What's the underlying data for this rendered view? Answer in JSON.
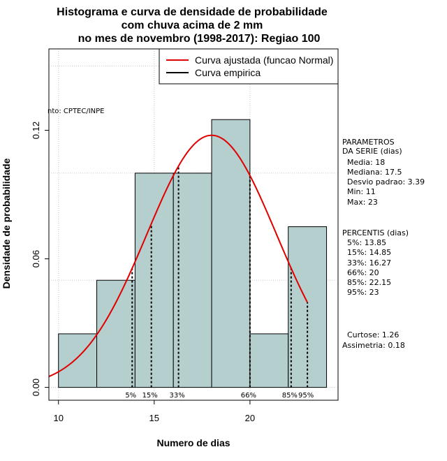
{
  "chart_data": {
    "type": "bar",
    "title_lines": [
      "Histograma e curva de densidade de probabilidade",
      "com chuva acima de 2 mm",
      "no mes de novembro (1998-2017): Regiao 100"
    ],
    "xlabel": "Numero de dias",
    "ylabel": "Densidade de probabilidade",
    "xlim": [
      9.5,
      24.6
    ],
    "ylim": [
      -0.006,
      0.158
    ],
    "x_ticks": [
      10,
      15,
      20
    ],
    "y_ticks": [
      0.0,
      0.06,
      0.12
    ],
    "y_tick_labels": [
      "0.00",
      "0.06",
      "0.12"
    ],
    "grid": true,
    "bar_color": "#b5cece",
    "bins": [
      {
        "from": 10,
        "to": 12,
        "density": 0.025
      },
      {
        "from": 12,
        "to": 14,
        "density": 0.05
      },
      {
        "from": 14,
        "to": 16,
        "density": 0.1
      },
      {
        "from": 16,
        "to": 18,
        "density": 0.1
      },
      {
        "from": 18,
        "to": 20,
        "density": 0.125
      },
      {
        "from": 20,
        "to": 22,
        "density": 0.025
      },
      {
        "from": 22,
        "to": 24,
        "density": 0.075
      }
    ],
    "normal_fit": {
      "mean": 18,
      "sd": 3.39,
      "x_from": 9.5,
      "x_to": 23.0,
      "color": "#e00000"
    },
    "percentile_lines": [
      {
        "label": "5%",
        "x": 13.85
      },
      {
        "label": "15%",
        "x": 14.85
      },
      {
        "label": "33%",
        "x": 16.27
      },
      {
        "label": "66%",
        "x": 20
      },
      {
        "label": "85%",
        "x": 22.15
      },
      {
        "label": "95%",
        "x": 23
      }
    ],
    "legend": [
      {
        "label": "Curva ajustada (funcao Normal)",
        "color": "#e00000"
      },
      {
        "label": "Curva empirica",
        "color": "#000000"
      }
    ],
    "legend_position": "top-right",
    "source_text": "nto: CPTEC/INPE"
  },
  "side_panel": {
    "parametros_lines": [
      "PARAMETROS",
      "DA SERIE (dias)",
      "  Media: 18",
      "  Mediana: 17.5",
      "  Desvio padrao: 3.39",
      "  Min: 11",
      "  Max: 23"
    ],
    "percentis_lines": [
      "PERCENTIS (dias)",
      "  5%: 13.85",
      "  15%: 14.85",
      "  33%: 16.27",
      "  66%: 20",
      "  85%: 22.15",
      "  95%: 23"
    ],
    "curtose": "  Curtose: 1.26",
    "assimetria": "Assimetria: 0.18"
  }
}
